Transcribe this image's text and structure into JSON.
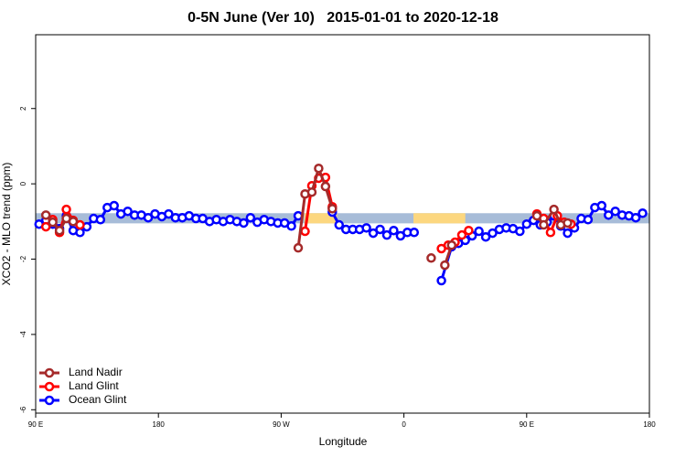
{
  "chart_data": {
    "type": "line",
    "title": "0-5N June (Ver 10)   2015-01-01 to 2020-12-18",
    "xlabel": "Longitude",
    "ylabel": "XCO2 - MLO trend (ppm)",
    "xlim": [
      90,
      540
    ],
    "ylim": [
      -6.09,
      3.96
    ],
    "xticks": [
      {
        "value": 90,
        "label": "90 E"
      },
      180,
      {
        "value": 270,
        "label": "90 W"
      },
      {
        "value": 360,
        "label": "0"
      },
      {
        "value": 450,
        "label": "90 E"
      },
      {
        "value": 540,
        "label": "180"
      }
    ],
    "yticks": [
      2,
      0,
      -2,
      -4,
      -6
    ],
    "legend": "bottom-left",
    "band": {
      "ylim": [
        -1.05,
        -0.78
      ],
      "color": "#a7bcd8"
    },
    "highlights": [
      {
        "xlim": [
          287,
          311
        ],
        "color": "#fcd77f"
      },
      {
        "xlim": [
          367,
          405
        ],
        "color": "#fcd77f"
      }
    ],
    "series": [
      {
        "name": "Land Nadir",
        "color": "#a52a2a",
        "x": [
          97.5,
          102.5,
          107.5,
          112.5,
          117.5,
          200,
          282.5,
          287.5,
          292.5,
          297.5,
          302.5,
          307.5,
          340,
          380,
          385,
          390,
          395,
          420,
          457.5,
          462.5,
          470,
          475,
          480
        ],
        "values": [
          -0.83,
          -1.02,
          -1.24,
          -0.92,
          -1.0,
          null,
          -1.7,
          -0.27,
          -0.22,
          0.41,
          -0.07,
          -0.66,
          null,
          -1.97,
          null,
          -2.16,
          -1.63,
          null,
          -0.85,
          -1.09,
          -0.68,
          -1.09,
          -1.04
        ]
      },
      {
        "name": "Land Glint",
        "color": "#ff0000",
        "x": [
          97.5,
          102.5,
          107.5,
          112.5,
          117.5,
          122.5,
          200,
          287.5,
          292.5,
          297.5,
          302.5,
          307.5,
          340,
          387.5,
          392.5,
          397.5,
          402.5,
          407.5,
          430,
          457.5,
          462.5,
          467.5,
          472.5,
          477.5,
          482.5
        ],
        "values": [
          -1.14,
          -0.95,
          -1.29,
          -0.68,
          -0.97,
          -1.09,
          null,
          -1.26,
          -0.05,
          0.15,
          0.17,
          -0.61,
          null,
          -1.72,
          -1.63,
          -1.55,
          -1.36,
          -1.24,
          null,
          -0.8,
          -0.92,
          -1.29,
          -0.85,
          -1.02,
          -1.07
        ]
      },
      {
        "name": "Ocean Glint",
        "color": "#0000ff",
        "x": [
          92.5,
          97.5,
          102.5,
          107.5,
          112.5,
          117.5,
          122.5,
          127.5,
          132.5,
          137.5,
          142.5,
          147.5,
          152.5,
          157.5,
          162.5,
          167.5,
          172.5,
          177.5,
          182.5,
          187.5,
          192.5,
          197.5,
          202.5,
          207.5,
          212.5,
          217.5,
          222.5,
          227.5,
          232.5,
          237.5,
          242.5,
          247.5,
          252.5,
          257.5,
          262.5,
          267.5,
          272.5,
          277.5,
          282.5,
          295,
          307.5,
          312.5,
          317.5,
          322.5,
          327.5,
          332.5,
          337.5,
          342.5,
          347.5,
          352.5,
          357.5,
          362.5,
          367.5,
          378,
          387.5,
          395,
          400,
          405,
          410,
          415,
          420,
          425,
          430,
          435,
          440,
          445,
          450,
          455,
          460,
          465,
          470,
          475,
          480,
          485,
          490,
          495,
          500,
          505,
          510,
          515,
          520,
          525,
          530,
          535
        ],
        "values": [
          -1.07,
          -0.97,
          -1.07,
          -1.19,
          -0.85,
          -1.24,
          -1.29,
          -1.14,
          -0.92,
          -0.95,
          -0.63,
          -0.58,
          -0.8,
          -0.73,
          -0.83,
          -0.83,
          -0.9,
          -0.8,
          -0.87,
          -0.8,
          -0.9,
          -0.9,
          -0.85,
          -0.92,
          -0.92,
          -1.0,
          -0.95,
          -1.0,
          -0.95,
          -1.0,
          -1.04,
          -0.9,
          -1.02,
          -0.95,
          -1.0,
          -1.04,
          -1.04,
          -1.12,
          -0.85,
          null,
          -0.75,
          -1.09,
          -1.21,
          -1.21,
          -1.21,
          -1.17,
          -1.31,
          -1.21,
          -1.36,
          -1.24,
          -1.38,
          -1.29,
          -1.29,
          null,
          -2.57,
          -1.67,
          -1.58,
          -1.5,
          -1.38,
          -1.26,
          -1.41,
          -1.31,
          -1.21,
          -1.17,
          -1.19,
          -1.26,
          -1.07,
          -0.97,
          -1.09,
          -1.02,
          -0.85,
          -1.12,
          -1.31,
          -1.17,
          -0.92,
          -0.95,
          -0.63,
          -0.58,
          -0.83,
          -0.73,
          -0.83,
          -0.85,
          -0.9,
          -0.78
        ]
      }
    ]
  }
}
